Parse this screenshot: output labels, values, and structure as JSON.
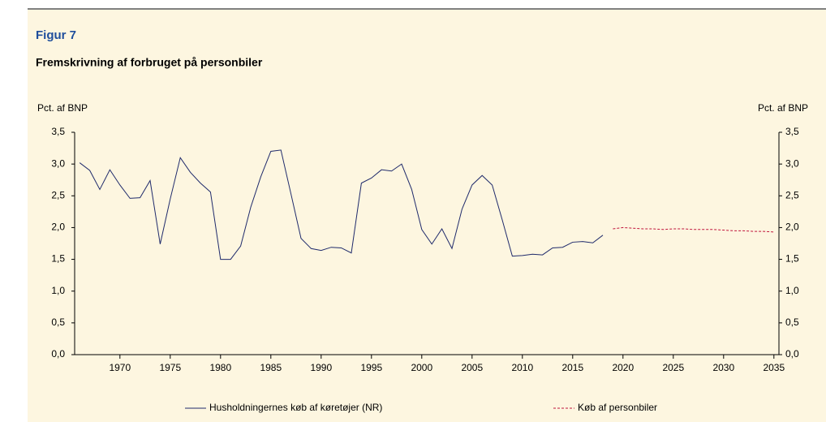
{
  "chart_data": {
    "type": "line",
    "label": "Figur 7",
    "title": "Fremskrivning af forbruget på personbiler",
    "ylabel": "Pct. af BNP",
    "y2label": "Pct. af BNP",
    "x": [
      1966,
      1967,
      1968,
      1969,
      1970,
      1971,
      1972,
      1973,
      1974,
      1975,
      1976,
      1977,
      1978,
      1979,
      1980,
      1981,
      1982,
      1983,
      1984,
      1985,
      1986,
      1987,
      1988,
      1989,
      1990,
      1991,
      1992,
      1993,
      1994,
      1995,
      1996,
      1997,
      1998,
      1999,
      2000,
      2001,
      2002,
      2003,
      2004,
      2005,
      2006,
      2007,
      2008,
      2009,
      2010,
      2011,
      2012,
      2013,
      2014,
      2015,
      2016,
      2017,
      2018,
      2019,
      2020,
      2021,
      2022,
      2023,
      2024,
      2025,
      2026,
      2027,
      2028,
      2029,
      2030,
      2031,
      2032,
      2033,
      2034,
      2035
    ],
    "series": [
      {
        "name": "Husholdningernes køb af køretøjer (NR)",
        "color": "#1f2a6b",
        "dash": "solid",
        "values": [
          3.02,
          2.9,
          2.6,
          2.91,
          2.67,
          2.46,
          2.47,
          2.74,
          1.74,
          2.45,
          3.1,
          2.87,
          2.7,
          2.56,
          1.5,
          1.5,
          1.71,
          2.32,
          2.8,
          3.2,
          3.22,
          2.53,
          1.83,
          1.67,
          1.64,
          1.69,
          1.68,
          1.6,
          2.7,
          2.78,
          2.91,
          2.89,
          3.0,
          2.6,
          1.97,
          1.74,
          1.98,
          1.67,
          2.29,
          2.67,
          2.82,
          2.67,
          2.12,
          1.55,
          1.56,
          1.58,
          1.57,
          1.68,
          1.69,
          1.77,
          1.78,
          1.76,
          1.88,
          null,
          null,
          null,
          null,
          null,
          null,
          null,
          null,
          null,
          null,
          null,
          null,
          null,
          null,
          null,
          null,
          null
        ]
      },
      {
        "name": "Køb af personbiler",
        "color": "#c0143c",
        "dash": "dashed",
        "values": [
          null,
          null,
          null,
          null,
          null,
          null,
          null,
          null,
          null,
          null,
          null,
          null,
          null,
          null,
          null,
          null,
          null,
          null,
          null,
          null,
          null,
          null,
          null,
          null,
          null,
          null,
          null,
          null,
          null,
          null,
          null,
          null,
          null,
          null,
          null,
          null,
          null,
          null,
          null,
          null,
          null,
          null,
          null,
          null,
          null,
          null,
          null,
          null,
          null,
          null,
          null,
          null,
          null,
          1.98,
          2.0,
          1.99,
          1.98,
          1.98,
          1.97,
          1.98,
          1.98,
          1.97,
          1.97,
          1.97,
          1.96,
          1.95,
          1.95,
          1.94,
          1.94,
          1.93
        ]
      }
    ],
    "xlim": [
      1965.5,
      2035.5
    ],
    "xticks": [
      1970,
      1975,
      1980,
      1985,
      1990,
      1995,
      2000,
      2005,
      2010,
      2015,
      2020,
      2025,
      2030,
      2035
    ],
    "ylim": [
      0,
      3.5
    ],
    "yticks": [
      {
        "value": 0,
        "label": "0,0"
      },
      {
        "value": 0.5,
        "label": "0,5"
      },
      {
        "value": 1,
        "label": "1,0"
      },
      {
        "value": 1.5,
        "label": "1,5"
      },
      {
        "value": 2,
        "label": "2,0"
      },
      {
        "value": 2.5,
        "label": "2,5"
      },
      {
        "value": 3,
        "label": "3,0"
      },
      {
        "value": 3.5,
        "label": "3,5"
      }
    ],
    "y2lim": [
      0,
      3.5
    ],
    "y2ticks": [
      {
        "value": 0,
        "label": "0,0"
      },
      {
        "value": 0.5,
        "label": "0,5"
      },
      {
        "value": 1,
        "label": "1,0"
      },
      {
        "value": 1.5,
        "label": "1,5"
      },
      {
        "value": 2,
        "label": "2,0"
      },
      {
        "value": 2.5,
        "label": "2,5"
      },
      {
        "value": 3,
        "label": "3,0"
      },
      {
        "value": 3.5,
        "label": "3,5"
      }
    ],
    "grid": false,
    "legend": "bottom"
  }
}
